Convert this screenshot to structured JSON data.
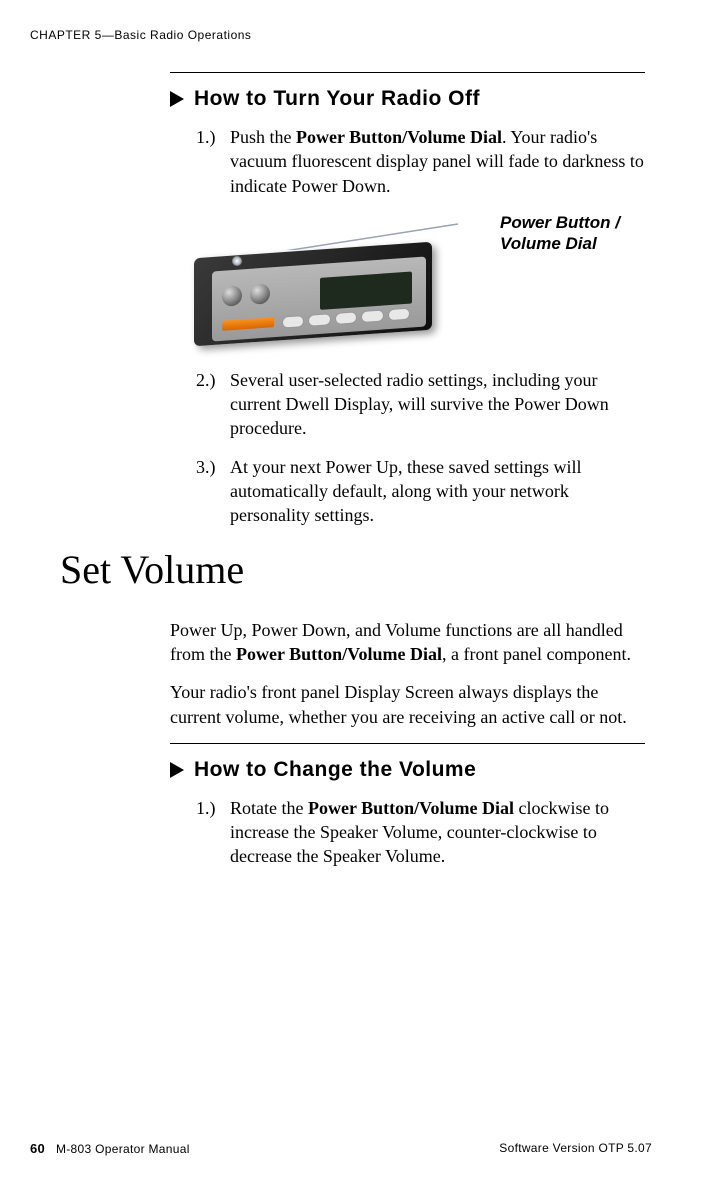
{
  "header": {
    "chapter_line": "CHAPTER 5—Basic Radio Operations"
  },
  "proc1": {
    "title": "How to Turn Your Radio Off",
    "steps": [
      {
        "num": "1.)",
        "html": "Push the <b>Power Button/Volume Dial</b>. Your radio's vacuum fluorescent display panel will fade to darkness to indicate Power Down."
      },
      {
        "num": "2.)",
        "html": "Several user-selected radio settings, including your current Dwell Display, will survive the Power Down procedure."
      },
      {
        "num": "3.)",
        "html": "At your next Power Up, these saved settings will automatically default, along with your network personality settings."
      }
    ],
    "callout_label": "Power Button / Volume Dial"
  },
  "section2": {
    "heading": "Set Volume",
    "para1": "Power Up, Power Down, and Volume functions are all handled from the <b>Power Button/Volume Dial</b>, a front panel component.",
    "para2": "Your radio's front panel Display Screen always displays the current volume, whether you are receiving an active call or not."
  },
  "proc2": {
    "title": "How to Change the Volume",
    "steps": [
      {
        "num": "1.)",
        "html": "Rotate the <b>Power Button/Volume Dial</b> clockwise to increase the Speaker Volume, counter-clockwise to decrease the Speaker Volume."
      }
    ]
  },
  "footer": {
    "page_num": "60",
    "manual": "M-803 Operator Manual",
    "version": "Software Version OTP 5.07"
  },
  "style": {
    "text_color": "#000000",
    "background": "#ffffff",
    "body_font_size_pt": 13,
    "heading_font_size_pt": 16,
    "section_font_size_pt": 30
  }
}
